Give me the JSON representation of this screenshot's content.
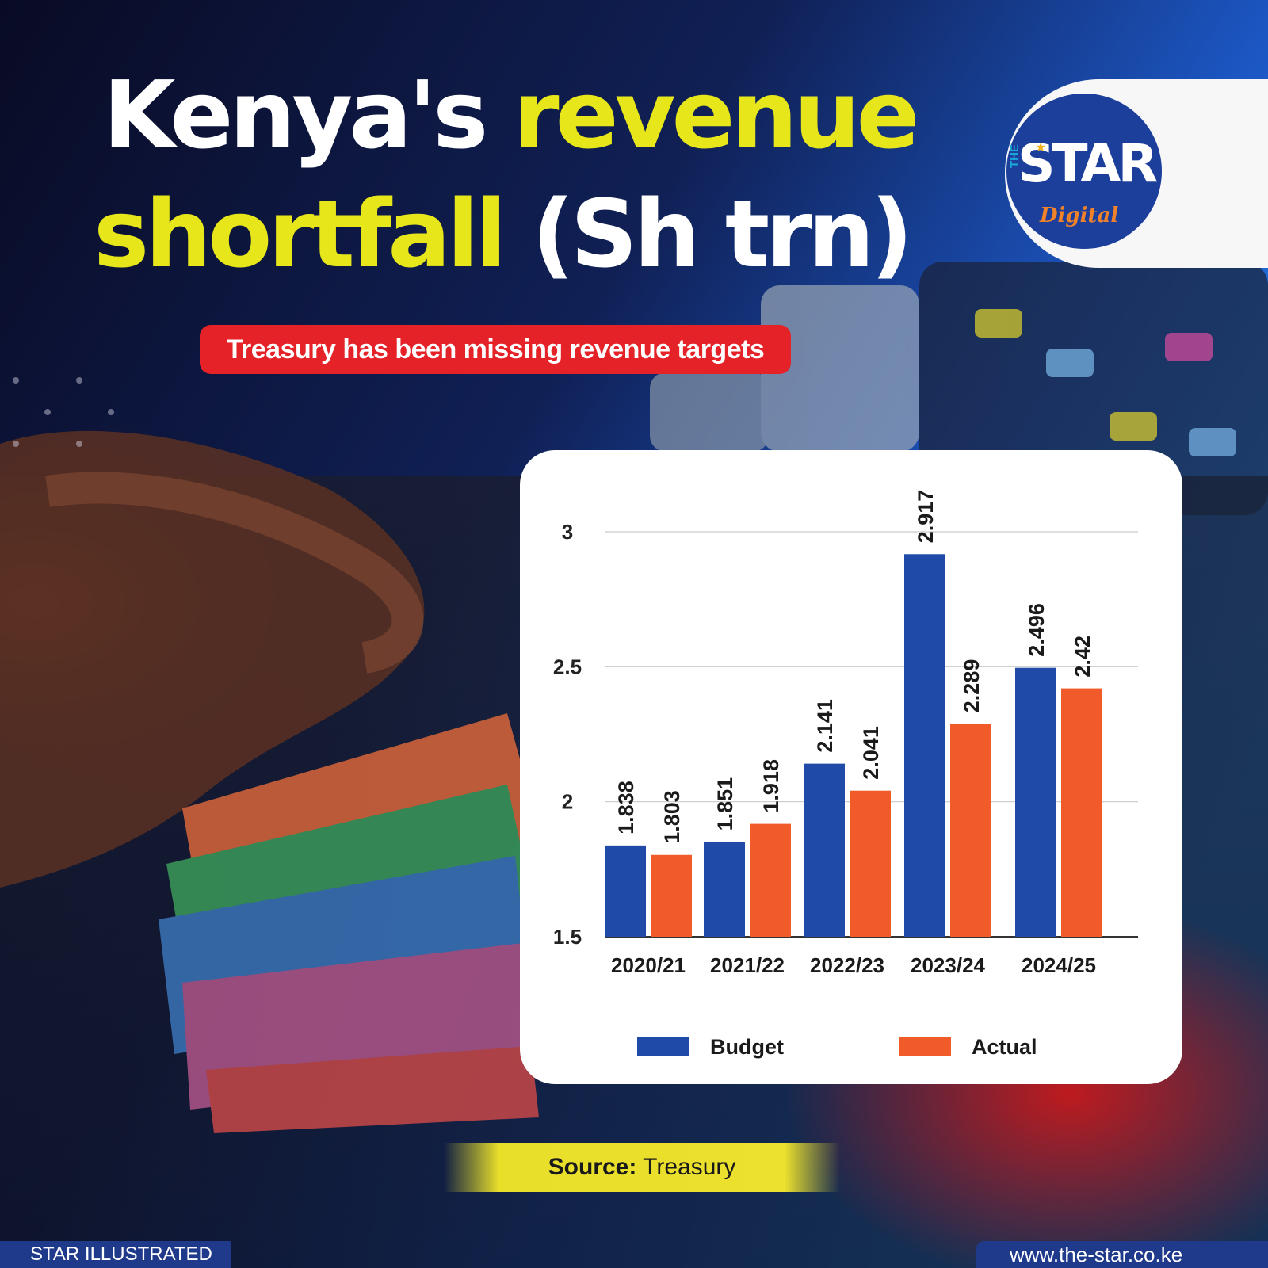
{
  "header": {
    "title_part1_white": "Kenya's",
    "title_part1_yellow": "revenue",
    "title_part2_yellow": "shortfall",
    "title_part2_white": "(Sh trn)",
    "subtitle": "Treasury has been missing revenue targets"
  },
  "logo": {
    "the": "THE",
    "star": "STAR",
    "digital": "Digital"
  },
  "source": {
    "label": "Source:",
    "value": "Treasury"
  },
  "footer": {
    "left": "STAR ILLUSTRATED",
    "right": "www.the-star.co.ke"
  },
  "colors": {
    "budget": "#1f4aa8",
    "actual": "#f15a29",
    "title_yellow": "#e6e61a",
    "subtitle_red": "#e42228",
    "footer_blue": "#1f3a8a"
  },
  "chart_data": {
    "type": "bar",
    "categories": [
      "2020/21",
      "2021/22",
      "2022/23",
      "2023/24",
      "2024/25"
    ],
    "series": [
      {
        "name": "Budget",
        "values": [
          1.838,
          1.851,
          2.141,
          2.917,
          2.496
        ],
        "labels": [
          "1.838",
          "1.851",
          "2.141",
          "2.917",
          "2.496"
        ]
      },
      {
        "name": "Actual",
        "values": [
          1.803,
          1.918,
          2.041,
          2.289,
          2.42
        ],
        "labels": [
          "1.803",
          "1.918",
          "2.041",
          "2.289",
          "2.42"
        ]
      }
    ],
    "ylim": [
      1.5,
      3
    ],
    "yticks": [
      1.5,
      2,
      2.5,
      3
    ],
    "ytick_labels": [
      "1.5",
      "2",
      "2.5",
      "3"
    ],
    "grid": true,
    "legend": "bottom"
  }
}
